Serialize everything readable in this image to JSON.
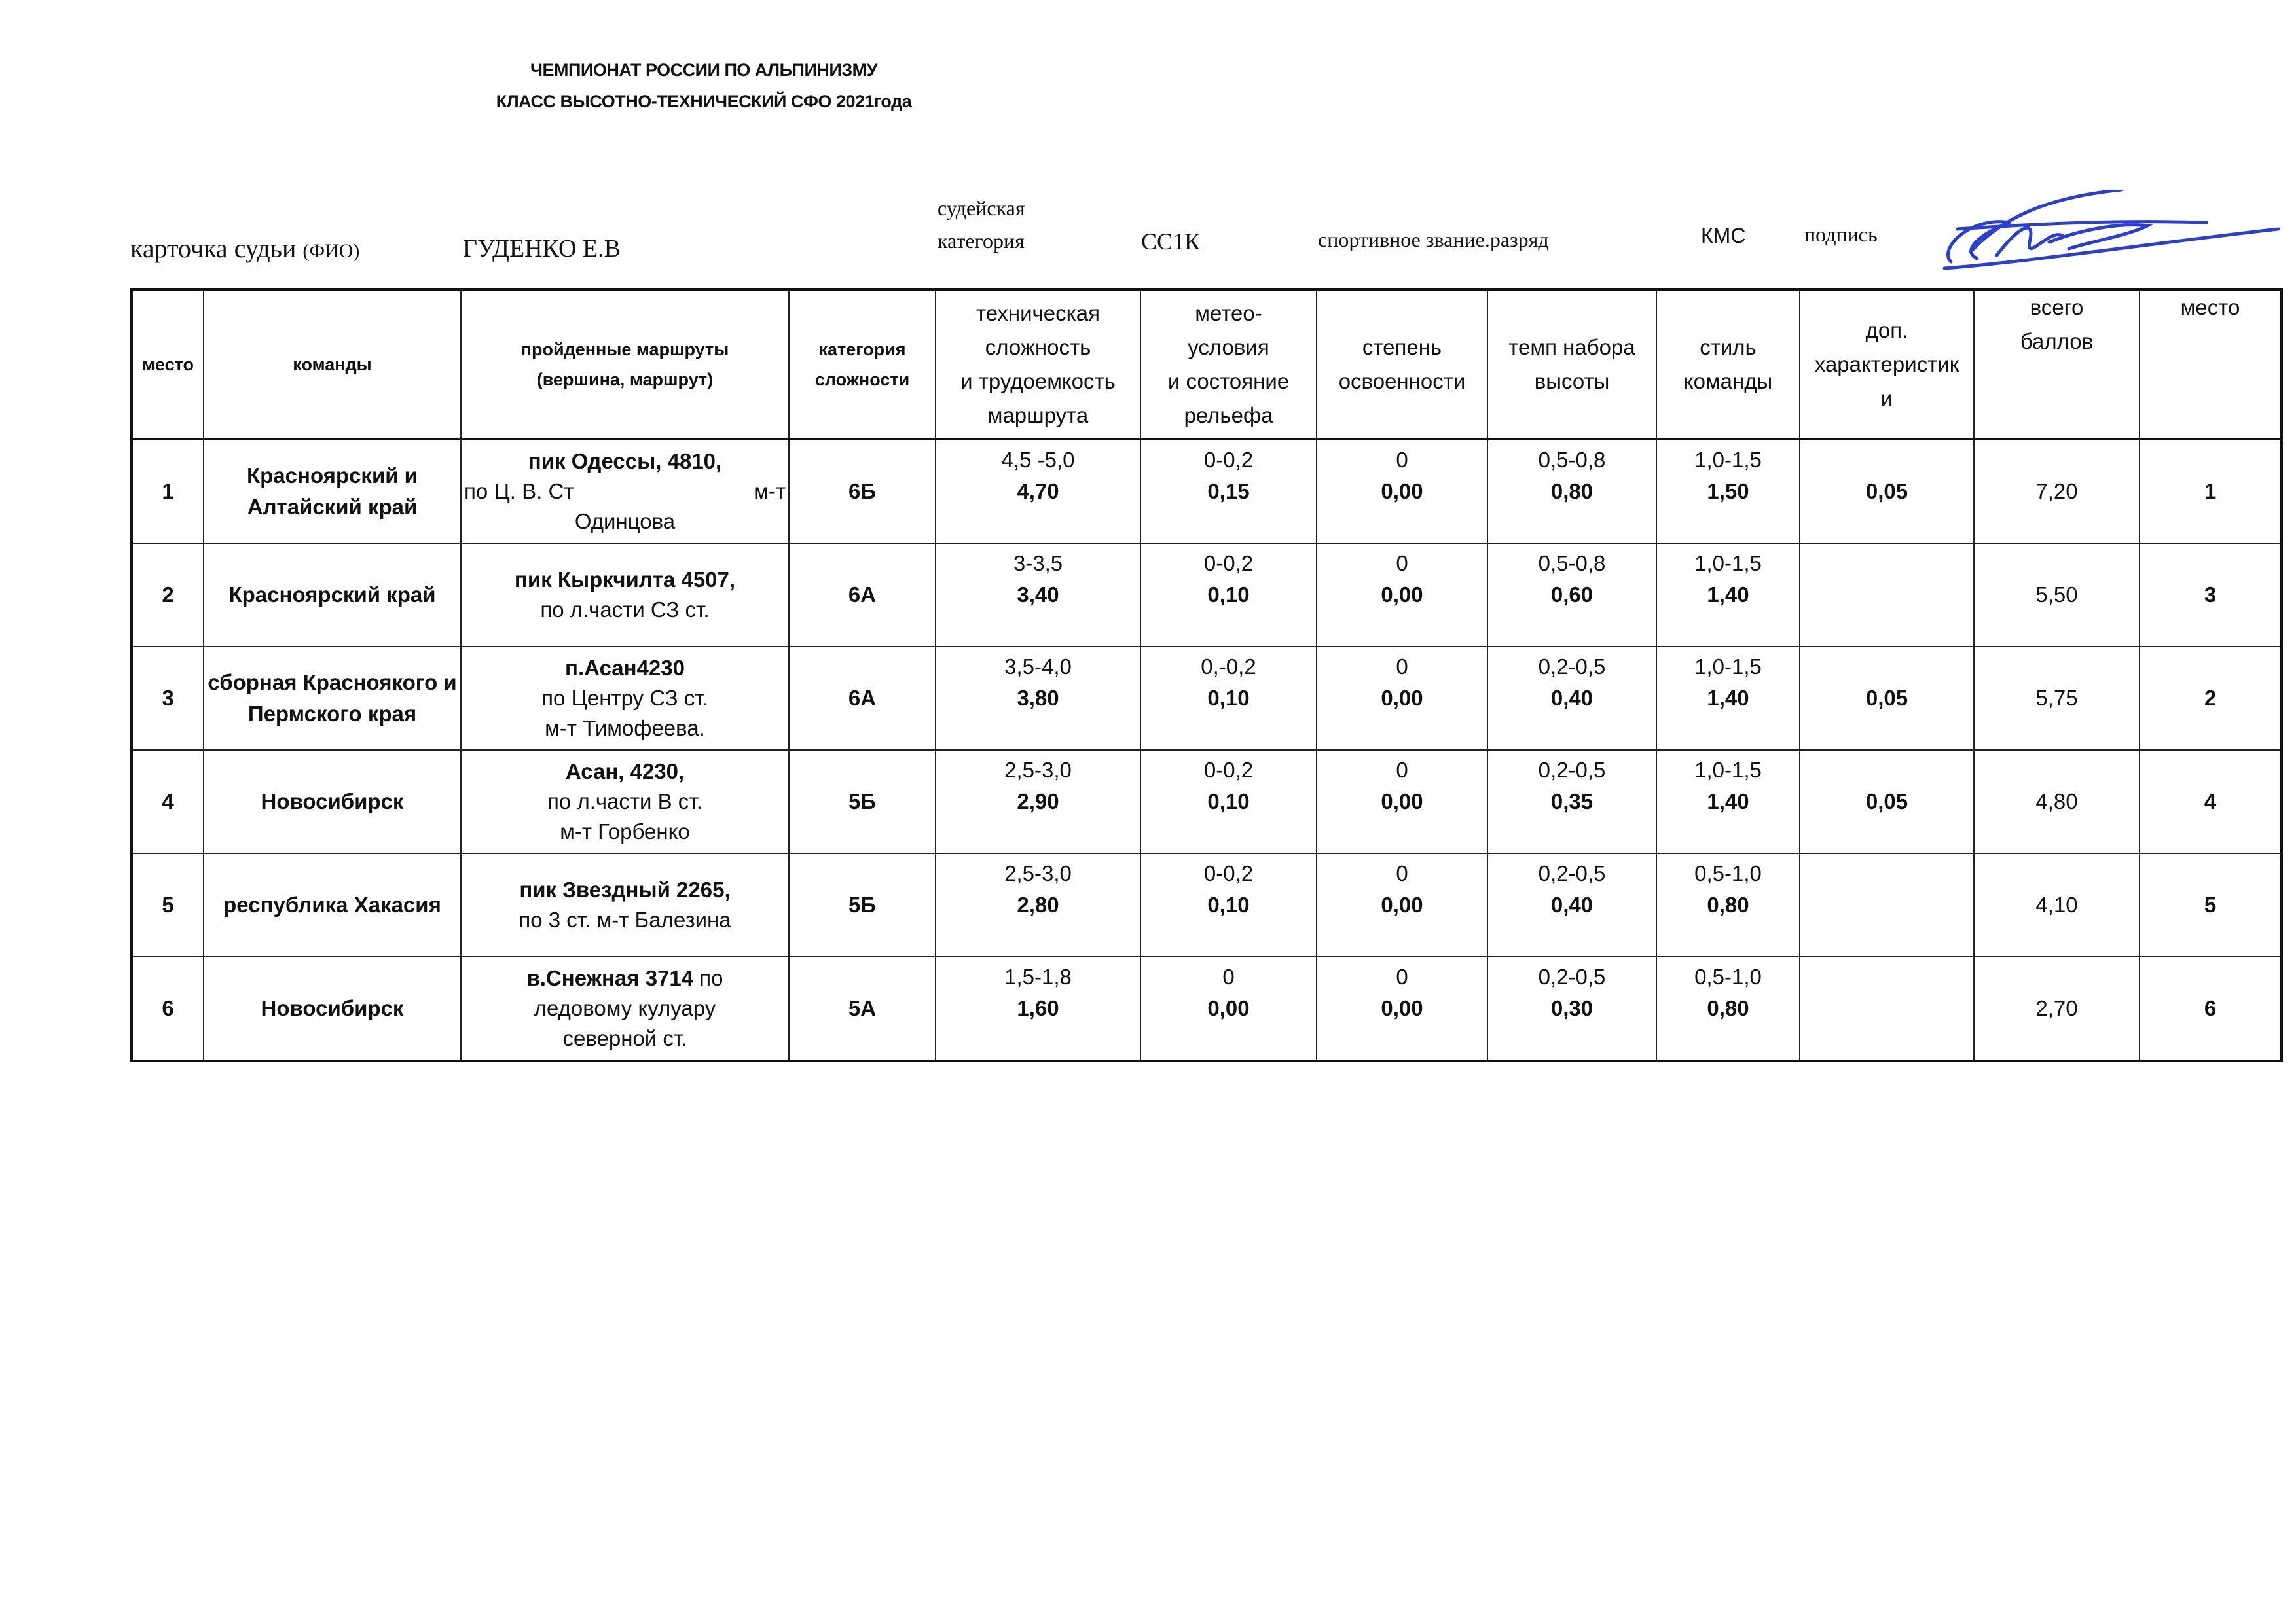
{
  "header": {
    "title_line1": "ЧЕМПИОНАТ РОССИИ ПО АЛЬПИНИЗМУ",
    "title_line2": "КЛАСС ВЫСОТНО-ТЕХНИЧЕСКИЙ  СФО 2021года"
  },
  "judge": {
    "card_label": "карточка судьи",
    "fio_label": "(ФИО)",
    "name": "ГУДЕНКО Е.В",
    "category_label_1": "судейская",
    "category_label_2": "категория",
    "category_value": "СС1К",
    "rank_label": "спортивное звание.разряд",
    "rank_value": "КМС",
    "signature_label": "подпись",
    "signature_color": "#2a3fd0"
  },
  "table": {
    "columns": [
      "место",
      "команды",
      "пройденные маршруты\n(вершина, маршрут)",
      "категория\nсложности",
      "техническая\nсложность\nи трудоемкость\nмаршрута",
      "метео-\nусловия\nи состояние\nрельефа",
      "степень\nосвоенности",
      "темп набора\nвысоты",
      "стиль\nкоманды",
      "доп.\nхарактеристик\nи",
      "всего\nбаллов",
      "место"
    ],
    "rows": [
      {
        "num": "1",
        "team": "Красноярский и Алтайский край",
        "route_title": "пик Одессы, 4810,",
        "route_title_suffix": "",
        "route_lines": [
          [
            "по Ц. В. Ст",
            "м-т"
          ],
          [
            "Одинцова"
          ]
        ],
        "category": "6Б",
        "tech": [
          "4,5 -5,0",
          "4,70"
        ],
        "meteo": [
          "0-0,2",
          "0,15"
        ],
        "mastery": [
          "0",
          "0,00"
        ],
        "pace": [
          "0,5-0,8",
          "0,80"
        ],
        "style": [
          "1,0-1,5",
          "1,50"
        ],
        "extra": "0,05",
        "total": "7,20",
        "place": "1"
      },
      {
        "num": "2",
        "team": "Красноярский край",
        "route_title": "пик Кыркчилта 4507,",
        "route_title_suffix": "",
        "route_lines": [
          [
            "по л.части СЗ ст."
          ]
        ],
        "category": "6А",
        "tech": [
          "3-3,5",
          "3,40"
        ],
        "meteo": [
          "0-0,2",
          "0,10"
        ],
        "mastery": [
          "0",
          "0,00"
        ],
        "pace": [
          "0,5-0,8",
          "0,60"
        ],
        "style": [
          "1,0-1,5",
          "1,40"
        ],
        "extra": "",
        "total": "5,50",
        "place": "3"
      },
      {
        "num": "3",
        "team": "сборная Красноякого и Пермского края",
        "route_title": "п.Асан4230",
        "route_title_suffix": "",
        "route_lines": [
          [
            "по Центру СЗ ст."
          ],
          [
            "м-т Тимофеева."
          ]
        ],
        "category": "6А",
        "tech": [
          "3,5-4,0",
          "3,80"
        ],
        "meteo": [
          "0,-0,2",
          "0,10"
        ],
        "mastery": [
          "0",
          "0,00"
        ],
        "pace": [
          "0,2-0,5",
          "0,40"
        ],
        "style": [
          "1,0-1,5",
          "1,40"
        ],
        "extra": "0,05",
        "total": "5,75",
        "place": "2"
      },
      {
        "num": "4",
        "team": "Новосибирск",
        "route_title": "Асан, 4230,",
        "route_title_suffix": "",
        "route_lines": [
          [
            "по л.части В ст."
          ],
          [
            "м-т Горбенко"
          ]
        ],
        "category": "5Б",
        "tech": [
          "2,5-3,0",
          "2,90"
        ],
        "meteo": [
          "0-0,2",
          "0,10"
        ],
        "mastery": [
          "0",
          "0,00"
        ],
        "pace": [
          "0,2-0,5",
          "0,35"
        ],
        "style": [
          "1,0-1,5",
          "1,40"
        ],
        "extra": "0,05",
        "total": "4,80",
        "place": "4"
      },
      {
        "num": "5",
        "team": "республика Хакасия",
        "route_title": "пик Звездный 2265,",
        "route_title_suffix": "",
        "route_lines": [
          [
            "по 3 ст. м-т Балезина"
          ]
        ],
        "category": "5Б",
        "tech": [
          "2,5-3,0",
          "2,80"
        ],
        "meteo": [
          "0-0,2",
          "0,10"
        ],
        "mastery": [
          "0",
          "0,00"
        ],
        "pace": [
          "0,2-0,5",
          "0,40"
        ],
        "style": [
          "0,5-1,0",
          "0,80"
        ],
        "extra": "",
        "total": "4,10",
        "place": "5"
      },
      {
        "num": "6",
        "team": "Новосибирск",
        "route_title": "в.Снежная 3714",
        "route_title_suffix": " по",
        "route_lines": [
          [
            "ледовому кулуару"
          ],
          [
            "северной ст."
          ]
        ],
        "category": "5А",
        "tech": [
          "1,5-1,8",
          "1,60"
        ],
        "meteo": [
          "0",
          "0,00"
        ],
        "mastery": [
          "0",
          "0,00"
        ],
        "pace": [
          "0,2-0,5",
          "0,30"
        ],
        "style": [
          "0,5-1,0",
          "0,80"
        ],
        "extra": "",
        "total": "2,70",
        "place": "6"
      }
    ]
  }
}
